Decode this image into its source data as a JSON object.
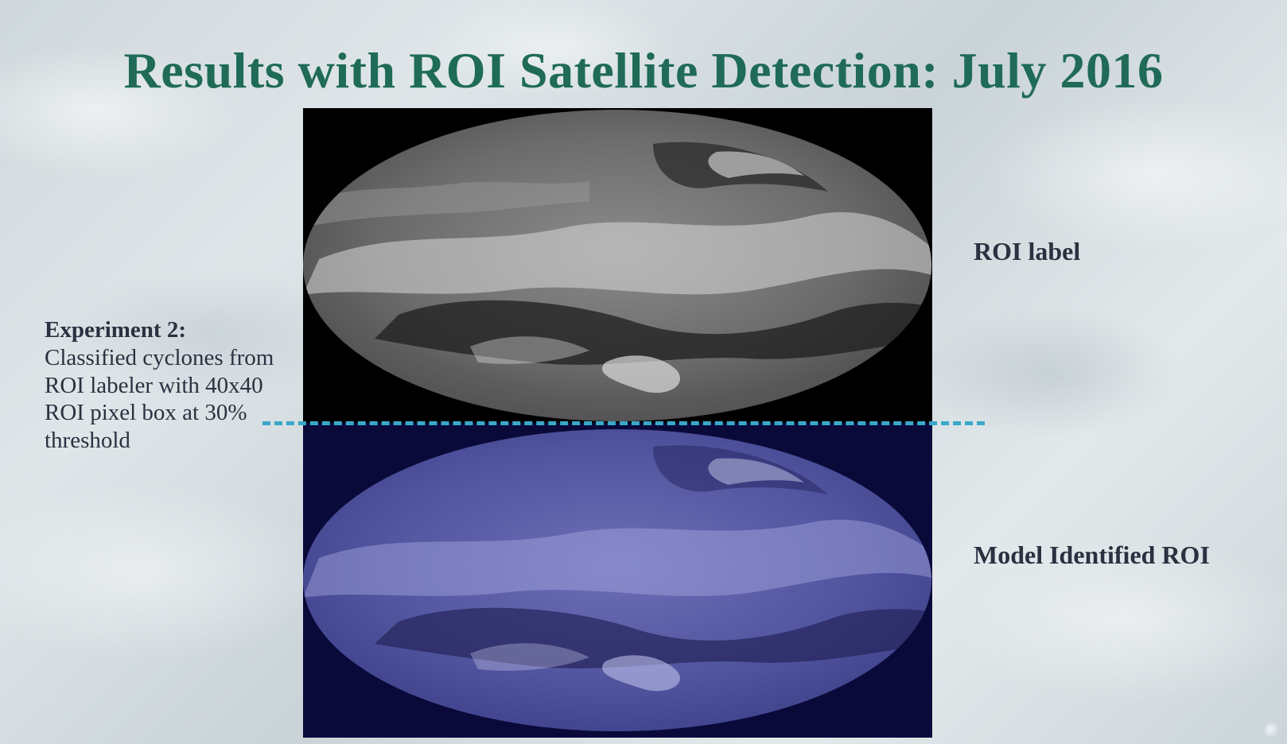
{
  "slide": {
    "title": "Results with ROI Satellite Detection: July 2016",
    "roi_label": "ROI label",
    "model_label": "Model Identified ROI",
    "experiment": {
      "heading": "Experiment 2:",
      "body": "Classified cyclones from ROI labeler with 40x40 ROI pixel box at 30% threshold"
    },
    "colors": {
      "title": "#1f6b57",
      "body_text": "#2a3140",
      "divider": "#3aa8c9",
      "top_panel_background": "#000000",
      "bottom_panel_background": "#0a0a3a"
    }
  }
}
